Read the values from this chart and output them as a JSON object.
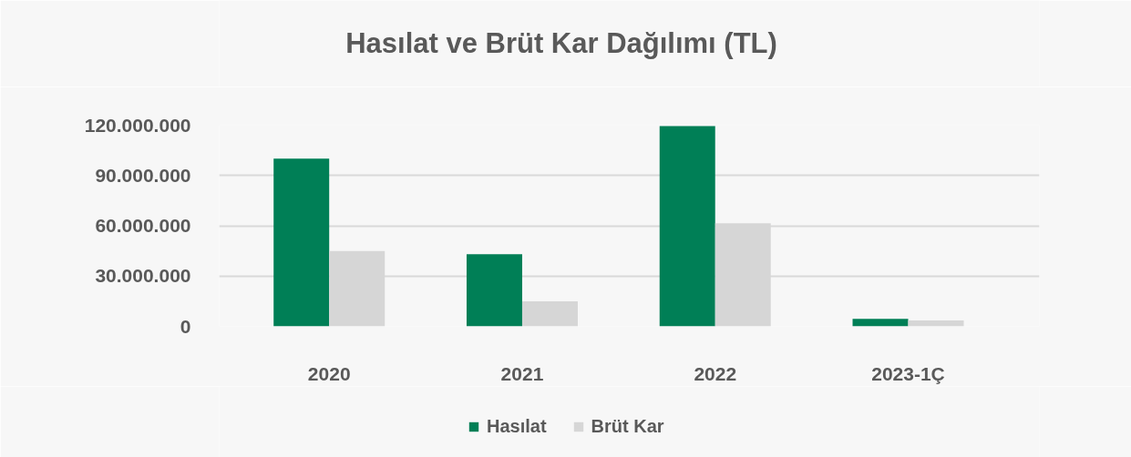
{
  "chart_data": {
    "type": "bar",
    "title": "Hasılat ve Brüt Kar Dağılımı (TL)",
    "categories": [
      "2020",
      "2021",
      "2022",
      "2023-1Ç"
    ],
    "series": [
      {
        "name": "Hasılat",
        "color": "#007f56",
        "values": [
          100000000,
          43000000,
          119500000,
          4500000
        ]
      },
      {
        "name": "Brüt Kar",
        "color": "#d6d6d6",
        "values": [
          45000000,
          15000000,
          61500000,
          3500000
        ]
      }
    ],
    "ylim": [
      0,
      120000000
    ],
    "yticks": [
      0,
      {
        "value": 30000000,
        "label": "30.000.000"
      },
      {
        "value": 60000000,
        "label": "60.000.000"
      },
      {
        "value": 90000000,
        "label": "90.000.000"
      },
      {
        "value": 120000000,
        "label": "120.000.000"
      }
    ],
    "grid": "y",
    "legend": "bottom"
  }
}
